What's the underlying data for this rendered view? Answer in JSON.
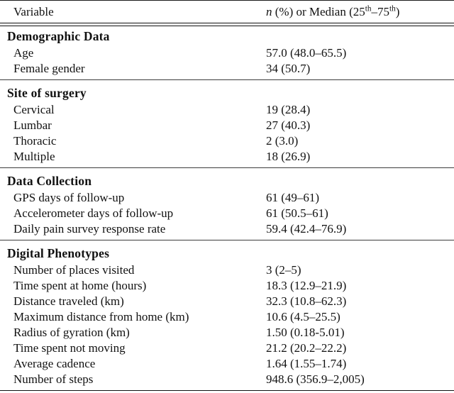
{
  "page": {
    "background_color": "#ffffff",
    "text_color": "#111111",
    "rule_color": "#2b2b2b"
  },
  "table": {
    "columns": {
      "variable": "Variable",
      "value_header_parts": {
        "n": "n",
        "mid": " (%) or Median (25",
        "sup1": "th",
        "dash": "–75",
        "sup2": "th",
        "close": ")"
      }
    },
    "sections": [
      {
        "title": "Demographic Data",
        "rows": [
          {
            "label": "Age",
            "value": "57.0 (48.0–65.5)"
          },
          {
            "label": "Female gender",
            "value": "34 (50.7)"
          }
        ]
      },
      {
        "title": "Site of surgery",
        "rows": [
          {
            "label": "Cervical",
            "value": "19 (28.4)"
          },
          {
            "label": "Lumbar",
            "value": "27 (40.3)"
          },
          {
            "label": "Thoracic",
            "value": "2 (3.0)"
          },
          {
            "label": "Multiple",
            "value": "18 (26.9)"
          }
        ]
      },
      {
        "title": "Data Collection",
        "rows": [
          {
            "label": "GPS days of follow-up",
            "value": "61 (49–61)"
          },
          {
            "label": "Accelerometer days of follow-up",
            "value": "61 (50.5–61)"
          },
          {
            "label": "Daily pain survey response rate",
            "value": "59.4 (42.4–76.9)"
          }
        ]
      },
      {
        "title": "Digital Phenotypes",
        "rows": [
          {
            "label": "Number of places visited",
            "value": "3 (2–5)"
          },
          {
            "label": "Time spent at home (hours)",
            "value": "18.3 (12.9–21.9)"
          },
          {
            "label": "Distance traveled (km)",
            "value": "32.3 (10.8–62.3)"
          },
          {
            "label": "Maximum distance from home (km)",
            "value": "10.6 (4.5–25.5)"
          },
          {
            "label": "Radius of gyration (km)",
            "value": "1.50 (0.18-5.01)"
          },
          {
            "label": "Time spent not moving",
            "value": "21.2 (20.2–22.2)"
          },
          {
            "label": "Average cadence",
            "value": "1.64 (1.55–1.74)"
          },
          {
            "label": "Number of steps",
            "value": "948.6 (356.9–2,005)"
          }
        ]
      }
    ]
  }
}
